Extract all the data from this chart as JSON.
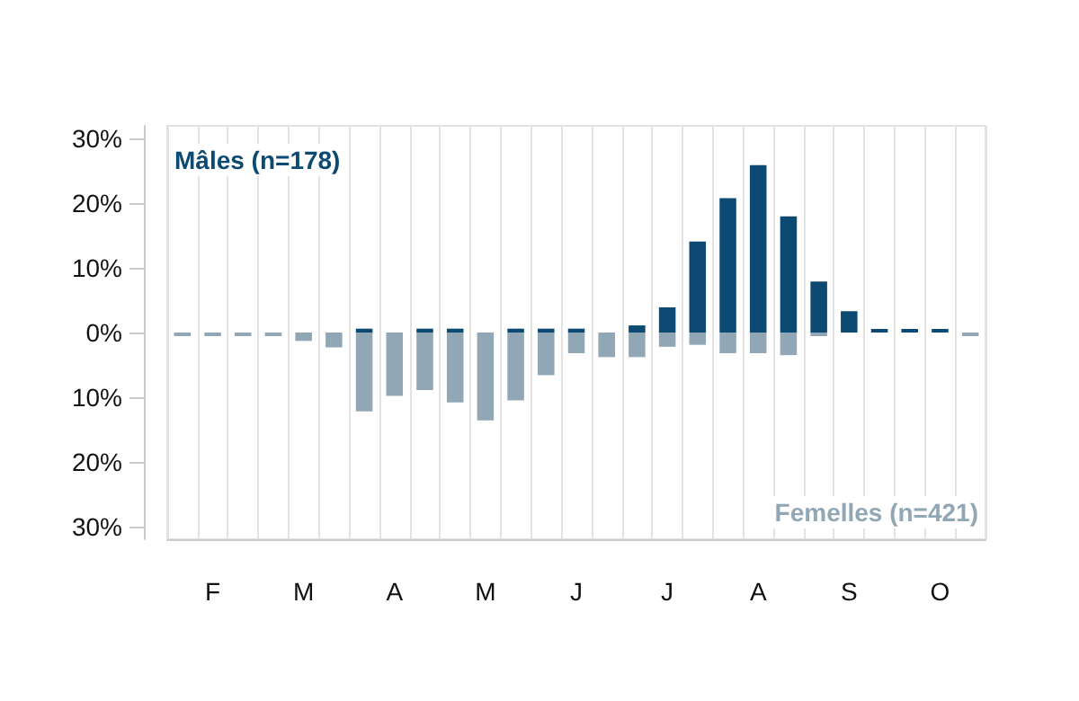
{
  "chart_data": {
    "type": "bar",
    "stacked": true,
    "legend": false,
    "grid": "x",
    "categories": [
      null,
      "F",
      null,
      null,
      "M",
      null,
      null,
      "A",
      null,
      null,
      "M",
      null,
      null,
      "J",
      null,
      null,
      "J",
      null,
      null,
      "A",
      null,
      null,
      "S",
      null,
      null,
      "O",
      null
    ],
    "series": [
      {
        "name": "Mâles (n=178)",
        "color": "#0d4a73",
        "values": [
          null,
          null,
          null,
          null,
          null,
          null,
          0.6,
          null,
          0.6,
          0.6,
          null,
          0.6,
          0.6,
          0.6,
          null,
          1.1,
          3.9,
          14.1,
          20.8,
          25.9,
          18.0,
          7.9,
          3.3,
          0.5,
          0.5,
          0.5,
          null
        ]
      },
      {
        "name": "Femelles (n=421)",
        "color": "#91a7b5",
        "values": [
          -0.1,
          -0.1,
          -0.1,
          -0.3,
          -1.3,
          -2.3,
          -12.2,
          -9.8,
          -8.9,
          -10.8,
          -13.6,
          -10.5,
          -6.6,
          -3.2,
          -3.8,
          -3.8,
          -2.2,
          -1.9,
          -3.2,
          -3.2,
          -3.5,
          -0.5,
          null,
          null,
          null,
          null,
          -0.1
        ]
      }
    ],
    "ylim": [
      -32,
      32
    ],
    "yticks": [
      {
        "value": 30,
        "label": "30%"
      },
      {
        "value": 20,
        "label": "20%"
      },
      {
        "value": 10,
        "label": "10%"
      },
      {
        "value": 0,
        "label": "0%"
      },
      {
        "value": -10,
        "label": "10%"
      },
      {
        "value": -20,
        "label": "20%"
      },
      {
        "value": -30,
        "label": "30%"
      }
    ]
  }
}
